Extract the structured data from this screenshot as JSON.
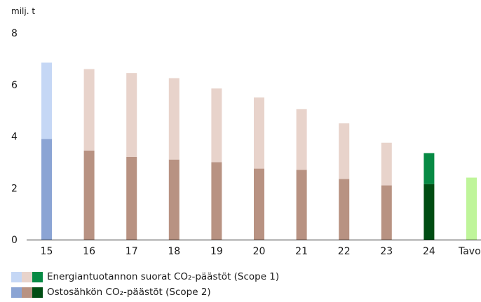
{
  "chart_data": {
    "type": "bar",
    "ylabel": "milj. t",
    "ylim": [
      0,
      8
    ],
    "yticks": [
      "0",
      "2",
      "4",
      "6",
      "8"
    ],
    "grid": false,
    "categories": [
      "15",
      "16",
      "17",
      "18",
      "19",
      "20",
      "21",
      "22",
      "23",
      "24",
      "Tavoit"
    ],
    "series": [
      {
        "name": "Ostosähkön CO₂-päästöt (Scope 2)",
        "values": [
          3.9,
          3.45,
          3.2,
          3.1,
          3.0,
          2.75,
          2.7,
          2.35,
          2.1,
          2.15,
          null
        ]
      },
      {
        "name": "Energiantuotannon suorat CO₂-päästöt (Scope 1)",
        "values": [
          2.95,
          3.15,
          3.25,
          3.15,
          2.85,
          2.75,
          2.35,
          2.15,
          1.65,
          1.2,
          null
        ]
      }
    ],
    "target": {
      "category": "Tavoit",
      "value": 2.4
    },
    "colors": {
      "scope1_2015": "#c5d7f5",
      "scope2_2015": "#8ba4d4",
      "scope1_mid": "#e8d3cb",
      "scope2_mid": "#b89282",
      "scope1_2024": "#078a44",
      "scope2_2024": "#004d13",
      "target": "#bff59a"
    }
  },
  "legend": [
    {
      "label": "Energiantuotannon suorat CO₂-päästöt (Scope 1)",
      "swatches": [
        "#c5d7f5",
        "#e8d3cb",
        "#078a44"
      ]
    },
    {
      "label": "Ostosähkön CO₂-päästöt (Scope 2)",
      "swatches": [
        "#8ba4d4",
        "#b89282",
        "#004d13"
      ]
    }
  ]
}
